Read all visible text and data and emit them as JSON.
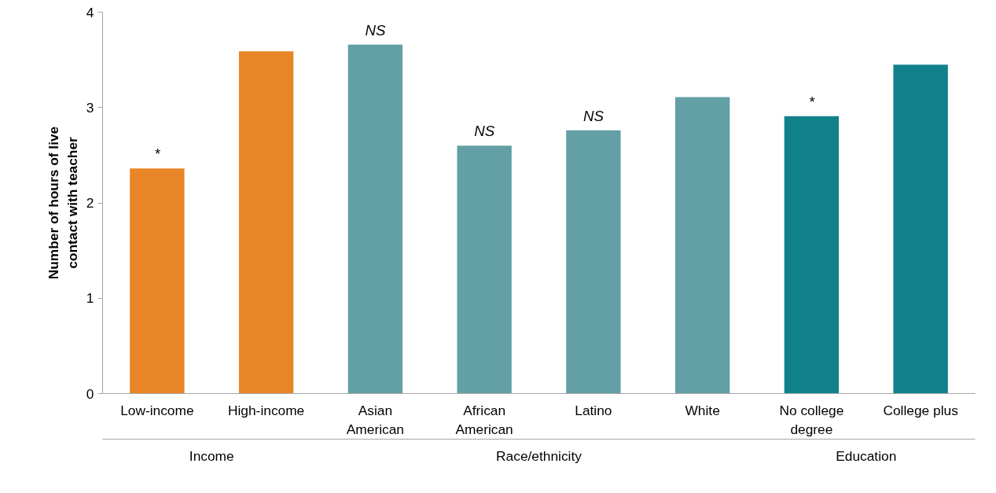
{
  "chart_data": {
    "type": "bar",
    "ylabel": "Number of hours of live\ncontact with teacher",
    "categories": [
      "Low-income",
      "High-income",
      "Asian\nAmerican",
      "African\nAmerican",
      "Latino",
      "White",
      "No college\ndegree",
      "College plus"
    ],
    "values": [
      2.36,
      3.59,
      3.66,
      2.6,
      2.76,
      3.11,
      2.91,
      3.45
    ],
    "colors": [
      "#e88527",
      "#e88527",
      "#62a0a6",
      "#62a0a6",
      "#62a0a6",
      "#62a0a6",
      "#10818a",
      "#10818a"
    ],
    "value_labels": [
      "*",
      null,
      "NS",
      "NS",
      "NS",
      null,
      "*",
      null
    ],
    "annotations": [
      "Income",
      "Race/ethnicity",
      "Education"
    ],
    "ylim": [
      0,
      4
    ],
    "yticks": [
      0,
      1,
      2,
      3,
      4
    ],
    "grid": false
  }
}
